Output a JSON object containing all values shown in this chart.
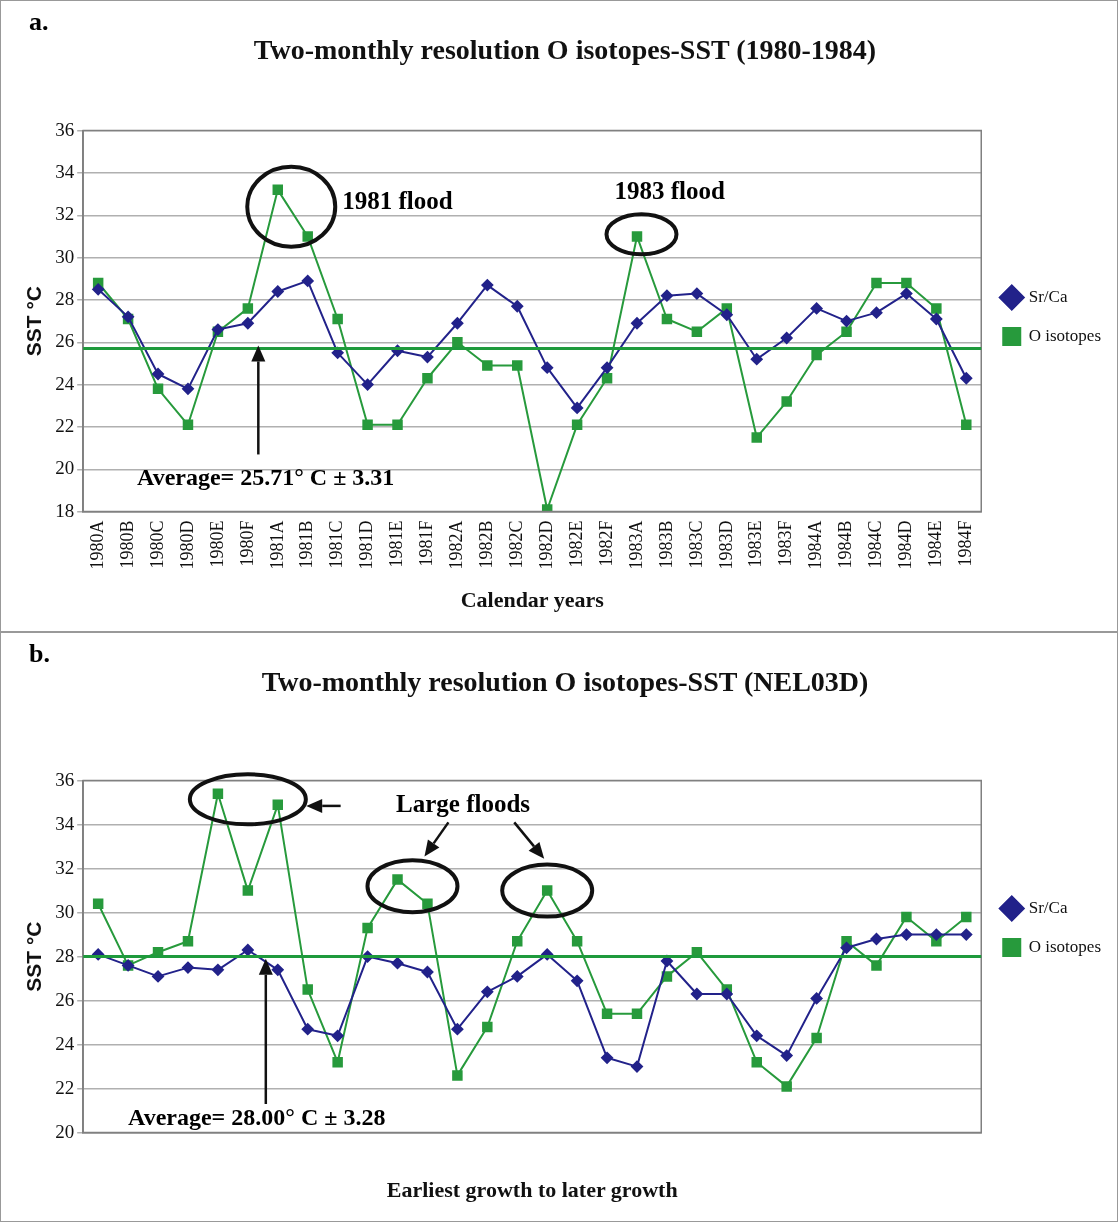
{
  "chart_data": [
    {
      "type": "line",
      "title": "Two-monthly resolution O isotopes-SST (1980-1984)",
      "xlabel": "Calendar years",
      "ylabel": "SST °C",
      "categories": [
        "1980A",
        "1980B",
        "1980C",
        "1980D",
        "1980E",
        "1980F",
        "1981A",
        "1981B",
        "1981C",
        "1981D",
        "1981E",
        "1981F",
        "1982A",
        "1982B",
        "1982C",
        "1982D",
        "1982E",
        "1982F",
        "1983A",
        "1983B",
        "1983C",
        "1983D",
        "1983E",
        "1983F",
        "1984A",
        "1984B",
        "1984C",
        "1984D",
        "1984E",
        "1984F"
      ],
      "series": [
        {
          "name": "O isotopes",
          "color": "#279a3c",
          "marker": "square",
          "values": [
            28.8,
            27.1,
            23.8,
            22.1,
            26.5,
            27.6,
            33.2,
            31.0,
            27.1,
            22.1,
            22.1,
            24.3,
            26.0,
            24.9,
            24.9,
            18.1,
            22.1,
            24.3,
            31.0,
            27.1,
            26.5,
            27.6,
            21.5,
            23.2,
            25.4,
            26.5,
            28.8,
            28.8,
            27.6,
            22.1
          ]
        },
        {
          "name": "Sr/Ca",
          "color": "#22228a",
          "marker": "diamond",
          "values": [
            28.5,
            27.2,
            24.5,
            23.8,
            26.6,
            26.9,
            28.4,
            28.9,
            25.5,
            24.0,
            25.6,
            25.3,
            26.9,
            28.7,
            27.7,
            24.8,
            22.9,
            24.8,
            26.9,
            28.2,
            28.3,
            27.3,
            25.2,
            26.2,
            27.6,
            27.0,
            27.4,
            28.3,
            27.1,
            24.3
          ]
        }
      ],
      "ylim": [
        18,
        36
      ],
      "yticks": [
        18,
        20,
        22,
        24,
        26,
        28,
        30,
        32,
        34,
        36
      ],
      "grid": "y",
      "legend": "right",
      "ref_lines": [
        {
          "axis": "y",
          "value": 25.71,
          "color": "#1e9a3c"
        }
      ],
      "annotations": [
        "a.",
        "1981 flood",
        "1983 flood",
        "Average= 25.71° C ± 3.31"
      ]
    },
    {
      "type": "line",
      "title": "Two-monthly resolution O isotopes-SST (NEL03D)",
      "xlabel": "Earliest growth to later growth",
      "ylabel": "SST °C",
      "categories": [
        null,
        null,
        null,
        null,
        null,
        null,
        null,
        null,
        null,
        null,
        null,
        null,
        null,
        null,
        null,
        null,
        null,
        null,
        null,
        null,
        null,
        null,
        null,
        null,
        null,
        null,
        null,
        null,
        null,
        null
      ],
      "series": [
        {
          "name": "O isotopes",
          "color": "#279a3c",
          "marker": "square",
          "values": [
            30.4,
            27.6,
            28.2,
            28.7,
            35.4,
            31.0,
            34.9,
            26.5,
            23.2,
            29.3,
            31.5,
            30.4,
            22.6,
            24.8,
            28.7,
            31.0,
            28.7,
            25.4,
            25.4,
            27.1,
            28.2,
            26.5,
            23.2,
            22.1,
            24.3,
            28.7,
            27.6,
            29.8,
            28.7,
            29.8
          ]
        },
        {
          "name": "Sr/Ca",
          "color": "#22228a",
          "marker": "diamond",
          "values": [
            28.1,
            27.6,
            27.1,
            27.5,
            27.4,
            28.3,
            27.4,
            24.7,
            24.4,
            28.0,
            27.7,
            27.3,
            24.7,
            26.4,
            27.1,
            28.1,
            26.9,
            23.4,
            23.0,
            27.8,
            26.3,
            26.3,
            24.4,
            23.5,
            26.1,
            28.4,
            28.8,
            29.0,
            29.0,
            29.0
          ]
        }
      ],
      "ylim": [
        20,
        36
      ],
      "yticks": [
        20,
        22,
        24,
        26,
        28,
        30,
        32,
        34,
        36
      ],
      "grid": "y",
      "legend": "right",
      "tick_labels": "y",
      "ref_lines": [
        {
          "axis": "y",
          "value": 28.0,
          "color": "#1e9a3c"
        }
      ],
      "annotations": [
        "b.",
        "Large floods",
        "Average= 28.00° C ± 3.28"
      ]
    }
  ]
}
